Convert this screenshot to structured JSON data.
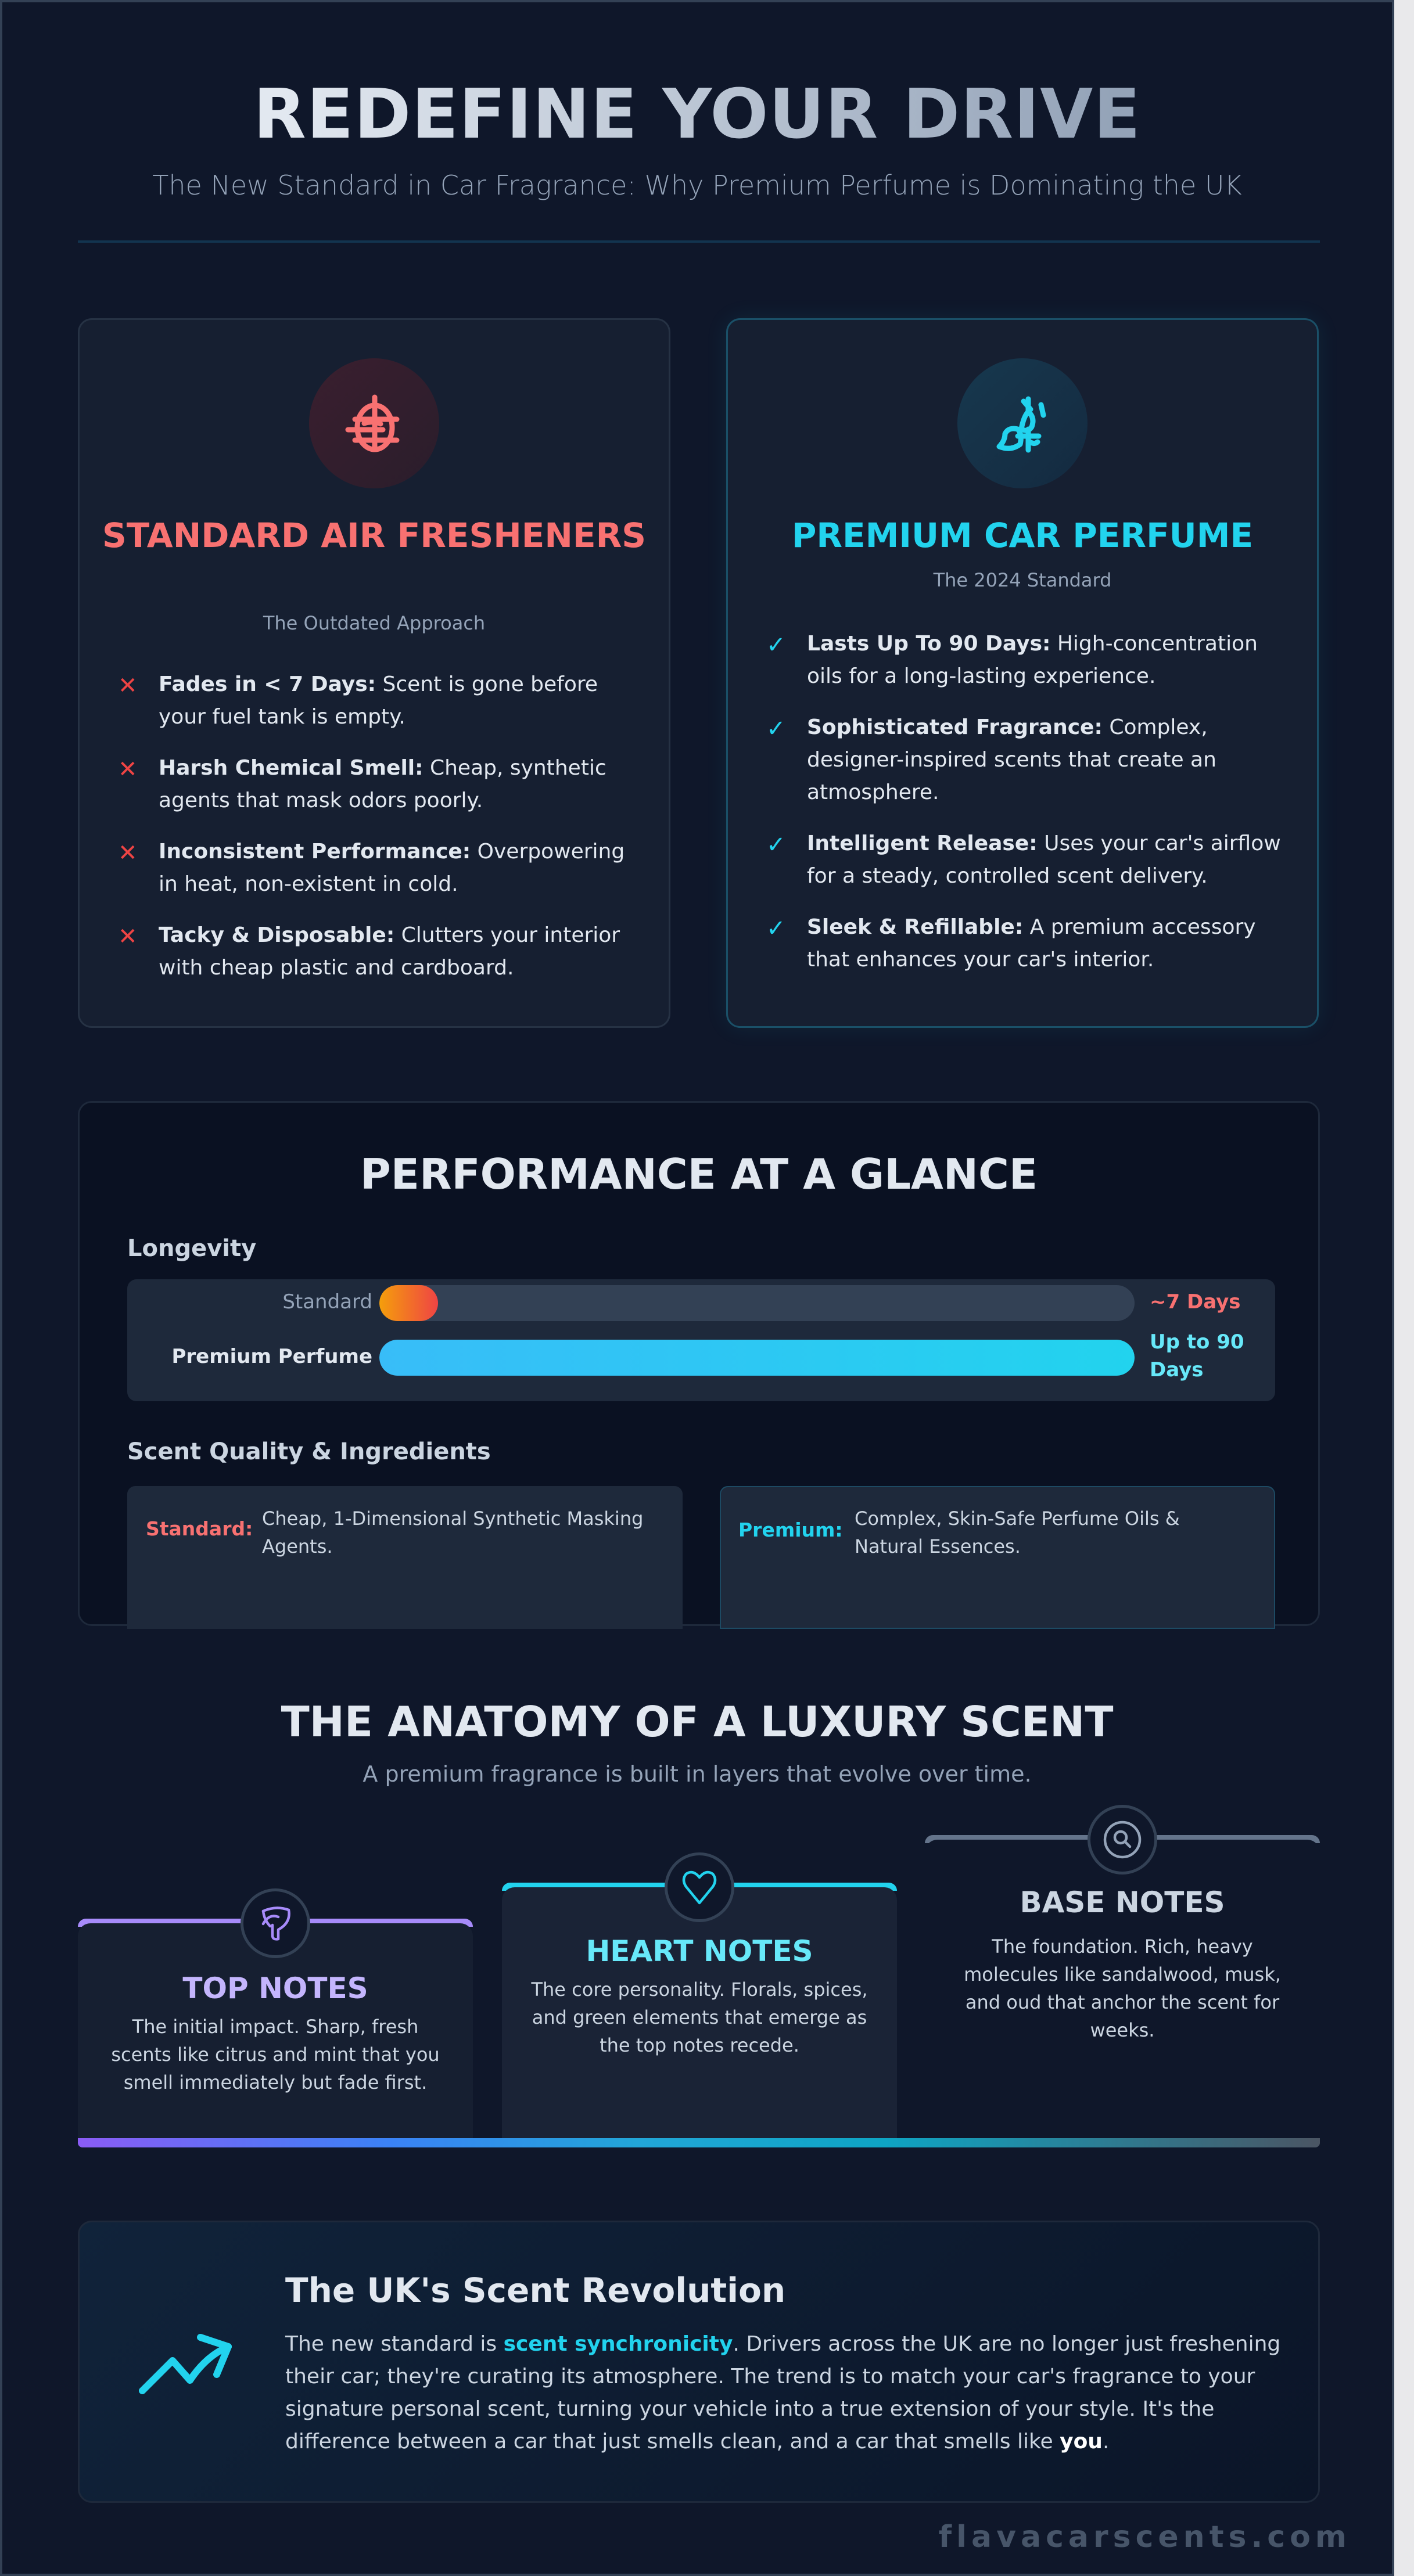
{
  "header": {
    "title": "REDEFINE YOUR DRIVE",
    "subtitle": "The New Standard in Car Fragrance: Why Premium Perfume is Dominating the UK"
  },
  "comparison": {
    "standard": {
      "icon": "crosshair-target-icon",
      "title": "STANDARD AIR FRESHENERS",
      "subtitle": "The Outdated Approach",
      "mark": "✕",
      "features": [
        {
          "bold": "Fades in < 7 Days:",
          "text": " Scent is gone before your fuel tank is empty."
        },
        {
          "bold": "Harsh Chemical Smell:",
          "text": " Cheap, synthetic agents that mask odors poorly."
        },
        {
          "bold": "Inconsistent Performance:",
          "text": " Overpowering in heat, non-existent in cold."
        },
        {
          "bold": "Tacky & Disposable:",
          "text": " Clutters your interior with cheap plastic and cardboard."
        }
      ]
    },
    "premium": {
      "icon": "perfume-bottle-icon",
      "title": "PREMIUM CAR PERFUME",
      "subtitle": "The 2024 Standard",
      "mark": "✓",
      "features": [
        {
          "bold": "Lasts Up To 90 Days:",
          "text": " High-concentration oils for a long-lasting experience."
        },
        {
          "bold": "Sophisticated Fragrance:",
          "text": " Complex, designer-inspired scents that create an atmosphere."
        },
        {
          "bold": "Intelligent Release:",
          "text": " Uses your car's airflow for a steady, controlled scent delivery."
        },
        {
          "bold": "Sleek & Refillable:",
          "text": " A premium accessory that enhances your car's interior."
        }
      ]
    }
  },
  "performance": {
    "title": "PERFORMANCE AT A GLANCE",
    "longevity": {
      "label": "Longevity",
      "rows": [
        {
          "name": "Standard",
          "value_label": "~7 Days",
          "fill_pct": 7.8
        },
        {
          "name": "Premium Perfume",
          "value_label": "Up to 90 Days",
          "fill_pct": 100
        }
      ]
    },
    "quality": {
      "label": "Scent Quality & Ingredients",
      "standard": {
        "label": "Standard:",
        "text": "Cheap, 1-Dimensional Synthetic Masking Agents."
      },
      "premium": {
        "label": "Premium:",
        "text": "Complex, Skin-Safe Perfume Oils & Natural Essences."
      }
    }
  },
  "chart_data": {
    "type": "bar",
    "title": "Longevity",
    "categories": [
      "Standard",
      "Premium Perfume"
    ],
    "values": [
      7,
      90
    ],
    "value_labels": [
      "~7 Days",
      "Up to 90 Days"
    ],
    "xlabel": "",
    "ylabel": "Days",
    "orientation": "horizontal",
    "xlim": [
      0,
      90
    ],
    "grid": false
  },
  "anatomy": {
    "title": "THE ANATOMY OF A LUXURY SCENT",
    "subtitle": "A premium fragrance is built in layers that evolve over time.",
    "notes": [
      {
        "icon": "citrus-leaf-icon",
        "title": "TOP NOTES",
        "text": "The initial impact. Sharp, fresh scents like citrus and mint that you smell immediately but fade first."
      },
      {
        "icon": "heart-icon",
        "title": "HEART NOTES",
        "text": "The core personality. Florals, spices, and green elements that emerge as the top notes recede."
      },
      {
        "icon": "search-icon",
        "title": "BASE NOTES",
        "text": "The foundation. Rich, heavy molecules like sandalwood, musk, and oud that anchor the scent for weeks."
      }
    ]
  },
  "revolution": {
    "icon": "trending-up-icon",
    "title": "The UK's Scent Revolution",
    "text_before": "The new standard is ",
    "highlight": "scent synchronicity",
    "text_middle": ". Drivers across the UK are no longer just freshening their car; they're curating its atmosphere. The trend is to match your car's fragrance to your signature personal scent, turning your vehicle into a true extension of your style. It's the difference between a car that just smells clean, and a car that smells like ",
    "emphasis": "you",
    "text_after": "."
  },
  "footer": {
    "site": "flavacarscents.com"
  },
  "colors": {
    "background": "#0f172a",
    "standard_accent": "#f87171",
    "premium_accent": "#22d3ee",
    "top_notes_accent": "#a78bfa",
    "base_notes_accent": "#64748b"
  }
}
